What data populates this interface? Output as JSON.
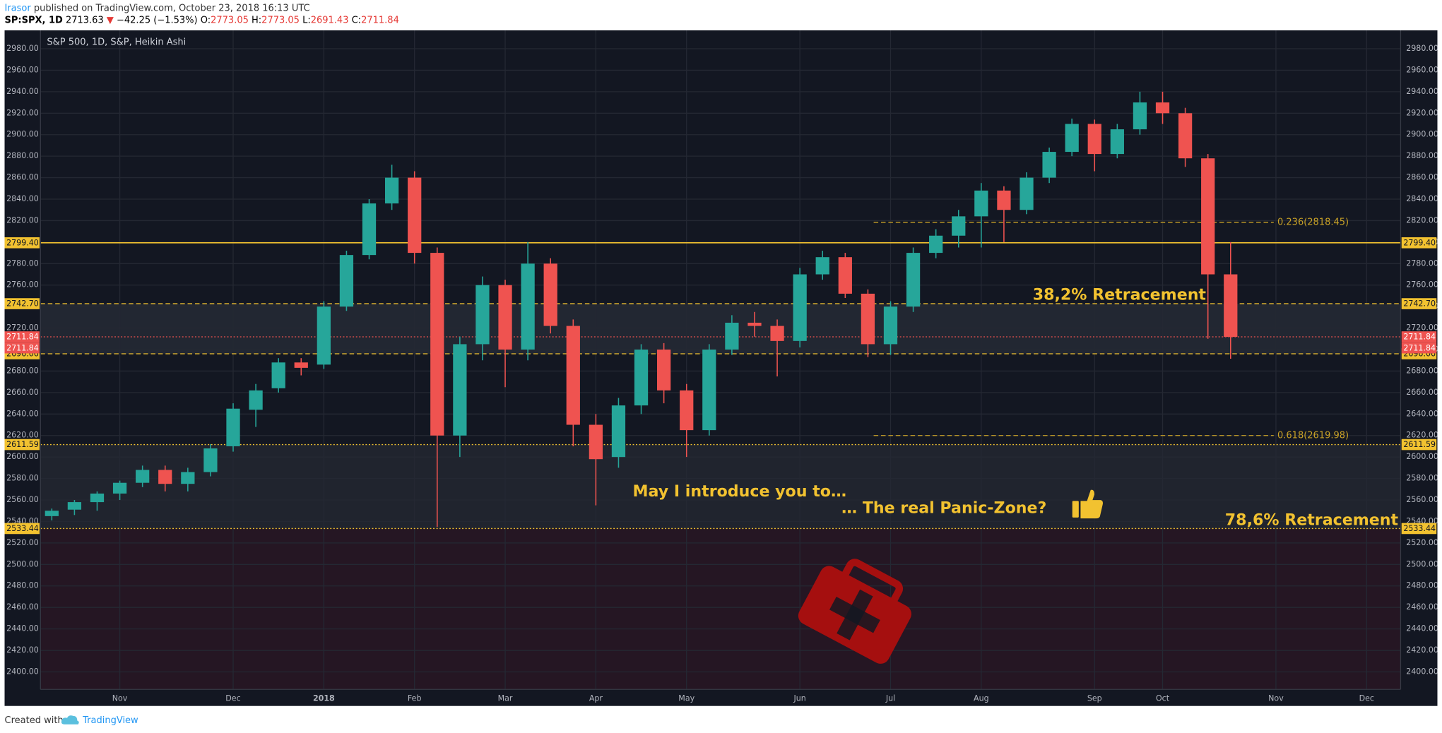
{
  "header": {
    "author": "Irasor",
    "published": "published on TradingView.com, October 23, 2018 16:13 UTC",
    "quote": [
      "SP:SPX, 1D",
      "2713.63",
      "▼",
      "−42.25 (−1.53%)",
      "O:",
      "2773.05",
      "H:",
      "2773.05",
      "L:",
      "2691.43",
      "C:",
      "2711.84"
    ]
  },
  "chart_data": {
    "type": "candlestick",
    "title": "S&P 500, 1D, S&P, Heikin Ashi",
    "categories": [
      null,
      null,
      null,
      "Nov",
      null,
      null,
      null,
      null,
      "Dec",
      null,
      null,
      null,
      "2018",
      null,
      null,
      null,
      "Feb",
      null,
      null,
      null,
      "Mar",
      null,
      null,
      null,
      "Apr",
      null,
      null,
      null,
      "May",
      null,
      null,
      null,
      null,
      "Jun",
      null,
      null,
      null,
      "Jul",
      null,
      null,
      null,
      "Aug",
      null,
      null,
      null,
      null,
      "Sep",
      null,
      null,
      "Oct",
      null,
      null,
      null,
      null,
      "Nov",
      null,
      null,
      null,
      "Dec",
      null
    ],
    "open": [
      2545,
      2551,
      2558,
      2566,
      2576,
      2588,
      2575,
      2586,
      2610,
      2644,
      2664,
      2688,
      2686,
      2740,
      2788,
      2836,
      2860,
      2790,
      2620,
      2705,
      2760,
      2700,
      2780,
      2722,
      2630,
      2600,
      2648,
      2700,
      2662,
      2625,
      2700,
      2725,
      2722,
      2708,
      2770,
      2786,
      2752,
      2705,
      2740,
      2790,
      2806,
      2824,
      2848,
      2830,
      2860,
      2884,
      2910,
      2882,
      2905,
      2930,
      2920,
      2878,
      2770,
      null,
      null,
      null,
      null,
      null,
      null,
      null
    ],
    "high": [
      2552,
      2560,
      2568,
      2578,
      2592,
      2592,
      2590,
      2612,
      2650,
      2668,
      2692,
      2692,
      2745,
      2792,
      2840,
      2872,
      2866,
      2795,
      2712,
      2768,
      2765,
      2800,
      2785,
      2728,
      2640,
      2655,
      2705,
      2706,
      2668,
      2705,
      2732,
      2735,
      2728,
      2776,
      2792,
      2790,
      2756,
      2745,
      2795,
      2812,
      2830,
      2855,
      2852,
      2865,
      2888,
      2915,
      2914,
      2910,
      2940,
      2940,
      2925,
      2882,
      2800,
      null,
      null,
      null,
      null,
      null,
      null,
      null
    ],
    "low": [
      2541,
      2546,
      2550,
      2560,
      2572,
      2568,
      2568,
      2582,
      2605,
      2628,
      2660,
      2676,
      2682,
      2736,
      2784,
      2830,
      2780,
      2535,
      2600,
      2690,
      2665,
      2690,
      2715,
      2610,
      2555,
      2590,
      2640,
      2650,
      2600,
      2620,
      2695,
      2712,
      2675,
      2702,
      2765,
      2748,
      2693,
      2695,
      2735,
      2785,
      2795,
      2795,
      2800,
      2826,
      2855,
      2880,
      2866,
      2878,
      2900,
      2910,
      2870,
      2710,
      2691.43,
      null,
      null,
      null,
      null,
      null,
      null,
      null
    ],
    "close": [
      2550,
      2558,
      2566,
      2576,
      2588,
      2575,
      2586,
      2608,
      2645,
      2662,
      2688,
      2683,
      2740,
      2788,
      2836,
      2860,
      2790,
      2620,
      2705,
      2760,
      2700,
      2780,
      2722,
      2630,
      2598,
      2648,
      2700,
      2662,
      2625,
      2700,
      2725,
      2722,
      2708,
      2770,
      2786,
      2752,
      2705,
      2740,
      2790,
      2806,
      2824,
      2848,
      2830,
      2860,
      2884,
      2910,
      2882,
      2905,
      2930,
      2920,
      2878,
      2770,
      2711.84,
      null,
      null,
      null,
      null,
      null,
      null,
      null
    ],
    "up_color": "#26a69a",
    "down_color": "#ef5350",
    "ylim": [
      2383.7,
      2997.1
    ],
    "yticks": [
      {
        "value": 2400,
        "label": "2400.00"
      },
      {
        "value": 2420,
        "label": "2420.00"
      },
      {
        "value": 2440,
        "label": "2440.00"
      },
      {
        "value": 2460,
        "label": "2460.00"
      },
      {
        "value": 2480,
        "label": "2480.00"
      },
      {
        "value": 2500,
        "label": "2500.00"
      },
      {
        "value": 2520,
        "label": "2520.00"
      },
      {
        "value": 2540,
        "label": "2540.00"
      },
      {
        "value": 2560,
        "label": "2560.00"
      },
      {
        "value": 2580,
        "label": "2580.00"
      },
      {
        "value": 2600,
        "label": "2600.00"
      },
      {
        "value": 2620,
        "label": "2620.00"
      },
      {
        "value": 2640,
        "label": "2640.00"
      },
      {
        "value": 2660,
        "label": "2660.00"
      },
      {
        "value": 2680,
        "label": "2680.00"
      },
      {
        "value": 2700,
        "label": "2700.00"
      },
      {
        "value": 2720,
        "label": "2720.00"
      },
      {
        "value": 2740,
        "label": "2740.00"
      },
      {
        "value": 2760,
        "label": "2760.00"
      },
      {
        "value": 2780,
        "label": "2780.00"
      },
      {
        "value": 2800,
        "label": "2800.00"
      },
      {
        "value": 2820,
        "label": "2820.00"
      },
      {
        "value": 2840,
        "label": "2840.00"
      },
      {
        "value": 2860,
        "label": "2860.00"
      },
      {
        "value": 2880,
        "label": "2880.00"
      },
      {
        "value": 2900,
        "label": "2900.00"
      },
      {
        "value": 2920,
        "label": "2920.00"
      },
      {
        "value": 2940,
        "label": "2940.00"
      },
      {
        "value": 2960,
        "label": "2960.00"
      },
      {
        "value": 2980,
        "label": "2980.00"
      }
    ],
    "grid": true,
    "levels": [
      {
        "value": 2799.4,
        "label": "2799.40",
        "style": "solid",
        "color": "#f2c230"
      },
      {
        "value": 2742.7,
        "label": "2742.70",
        "style": "dashed",
        "color": "#f2c230"
      },
      {
        "value": 2711.84,
        "label": "2711.84",
        "style": "dotted",
        "color": "#ef5350"
      },
      {
        "value": 2696.06,
        "label": "2696.06",
        "style": "dashed",
        "color": "#f2c230"
      },
      {
        "value": 2611.59,
        "label": "2611.59",
        "style": "dotted",
        "color": "#f2c230"
      },
      {
        "value": 2533.44,
        "label": "2533.44",
        "style": "dotted",
        "color": "#f2c230"
      }
    ],
    "fib_color": "#c9a227",
    "fibs": [
      {
        "value": 2818.45,
        "label": "0.236(2818.45)"
      },
      {
        "value": 2619.98,
        "label": "0.618(2619.98)"
      }
    ],
    "annotations": [
      "38,2% Retracement",
      "May I introduce you to…",
      "… The real Panic-Zone?",
      "78,6% Retracement"
    ]
  },
  "footer": {
    "created": "Created with",
    "brand": "TradingView"
  }
}
